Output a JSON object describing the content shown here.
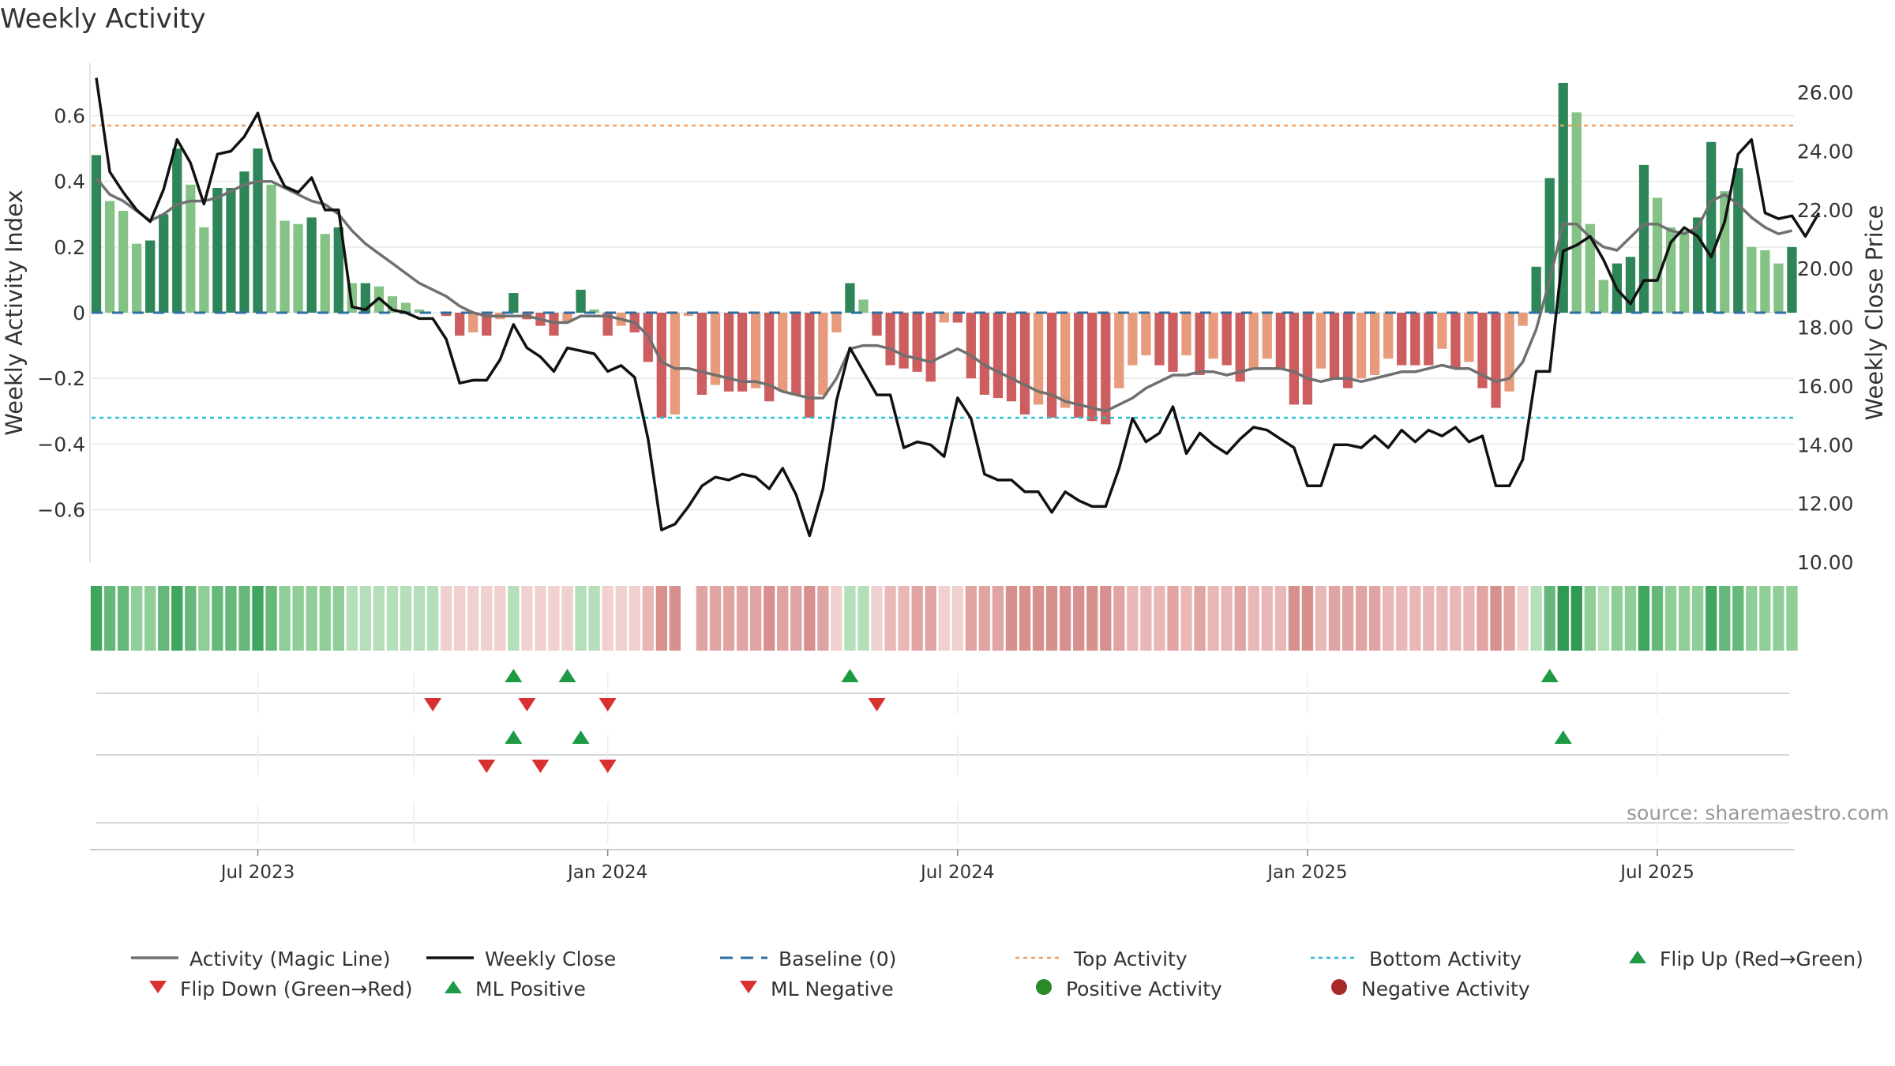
{
  "chart_data": {
    "type": "bar",
    "title": "Weekly Activity",
    "ylabel": "Weekly Activity Index",
    "y2label": "Weekly Close Price",
    "ylim": [
      -0.76,
      0.76
    ],
    "y2lim": [
      10,
      27
    ],
    "yticks": [
      {
        "value": 0.6,
        "label": "0.6"
      },
      {
        "value": 0.4,
        "label": "0.4"
      },
      {
        "value": 0.2,
        "label": "0.2"
      },
      {
        "value": 0,
        "label": "0"
      },
      {
        "value": -0.2,
        "label": "−0.2"
      },
      {
        "value": -0.4,
        "label": "−0.4"
      },
      {
        "value": -0.6,
        "label": "−0.6"
      }
    ],
    "y2ticks": [
      {
        "value": 26,
        "label": "26.00"
      },
      {
        "value": 24,
        "label": "24.00"
      },
      {
        "value": 22,
        "label": "22.00"
      },
      {
        "value": 20,
        "label": "20.00"
      },
      {
        "value": 18,
        "label": "18.00"
      },
      {
        "value": 16,
        "label": "16.00"
      },
      {
        "value": 14,
        "label": "14.00"
      },
      {
        "value": 12,
        "label": "12.00"
      },
      {
        "value": 10,
        "label": "10.00"
      }
    ],
    "xticks": [
      {
        "week": 12,
        "label": "Jul 2023"
      },
      {
        "week": 38,
        "label": "Jan 2024"
      },
      {
        "week": 64,
        "label": "Jul 2024"
      },
      {
        "week": 90,
        "label": "Jan 2025"
      },
      {
        "week": 116,
        "label": "Jul 2025"
      }
    ],
    "top_activity": 0.57,
    "bottom_activity": -0.32,
    "activity": [
      0.48,
      0.34,
      0.31,
      0.21,
      0.22,
      0.3,
      0.5,
      0.39,
      0.26,
      0.38,
      0.38,
      0.43,
      0.5,
      0.39,
      0.28,
      0.27,
      0.29,
      0.24,
      0.26,
      0.09,
      0.09,
      0.08,
      0.05,
      0.03,
      0.01,
      0.0,
      -0.01,
      -0.07,
      -0.06,
      -0.07,
      -0.02,
      0.06,
      -0.02,
      -0.04,
      -0.07,
      -0.03,
      0.07,
      0.01,
      -0.07,
      -0.04,
      -0.06,
      -0.15,
      -0.32,
      -0.31,
      -0.01,
      -0.25,
      -0.22,
      -0.24,
      -0.24,
      -0.23,
      -0.27,
      -0.24,
      -0.25,
      -0.32,
      -0.25,
      -0.06,
      0.09,
      0.04,
      -0.07,
      -0.16,
      -0.17,
      -0.18,
      -0.21,
      -0.03,
      -0.03,
      -0.2,
      -0.25,
      -0.26,
      -0.27,
      -0.31,
      -0.28,
      -0.32,
      -0.29,
      -0.32,
      -0.33,
      -0.34,
      -0.23,
      -0.16,
      -0.13,
      -0.16,
      -0.18,
      -0.13,
      -0.19,
      -0.14,
      -0.16,
      -0.21,
      -0.17,
      -0.14,
      -0.17,
      -0.28,
      -0.28,
      -0.17,
      -0.2,
      -0.23,
      -0.2,
      -0.19,
      -0.14,
      -0.16,
      -0.16,
      -0.16,
      -0.11,
      -0.17,
      -0.15,
      -0.23,
      -0.29,
      -0.24,
      -0.04,
      0.14,
      0.41,
      0.7,
      0.61,
      0.27,
      0.1,
      0.15,
      0.17,
      0.45,
      0.35,
      0.26,
      0.25,
      0.29,
      0.52,
      0.37,
      0.44,
      0.2,
      0.19,
      0.15,
      0.2
    ],
    "magic_line": [
      0.41,
      0.36,
      0.34,
      0.31,
      0.28,
      0.3,
      0.33,
      0.34,
      0.34,
      0.35,
      0.37,
      0.39,
      0.4,
      0.4,
      0.38,
      0.36,
      0.34,
      0.33,
      0.3,
      0.25,
      0.21,
      0.18,
      0.15,
      0.12,
      0.09,
      0.07,
      0.05,
      0.02,
      0.0,
      -0.01,
      -0.01,
      -0.01,
      -0.01,
      -0.02,
      -0.03,
      -0.03,
      -0.01,
      -0.01,
      -0.01,
      -0.02,
      -0.03,
      -0.07,
      -0.15,
      -0.17,
      -0.17,
      -0.18,
      -0.19,
      -0.2,
      -0.21,
      -0.21,
      -0.22,
      -0.24,
      -0.25,
      -0.26,
      -0.26,
      -0.2,
      -0.11,
      -0.1,
      -0.1,
      -0.11,
      -0.13,
      -0.14,
      -0.15,
      -0.13,
      -0.11,
      -0.13,
      -0.16,
      -0.18,
      -0.2,
      -0.22,
      -0.24,
      -0.25,
      -0.27,
      -0.28,
      -0.29,
      -0.3,
      -0.28,
      -0.26,
      -0.23,
      -0.21,
      -0.19,
      -0.19,
      -0.18,
      -0.18,
      -0.19,
      -0.18,
      -0.17,
      -0.17,
      -0.17,
      -0.18,
      -0.2,
      -0.21,
      -0.2,
      -0.2,
      -0.21,
      -0.2,
      -0.19,
      -0.18,
      -0.18,
      -0.17,
      -0.16,
      -0.17,
      -0.17,
      -0.19,
      -0.21,
      -0.2,
      -0.15,
      -0.05,
      0.1,
      0.27,
      0.27,
      0.23,
      0.2,
      0.19,
      0.23,
      0.27,
      0.27,
      0.25,
      0.24,
      0.26,
      0.34,
      0.36,
      0.33,
      0.29,
      0.26,
      0.24,
      0.25
    ],
    "weekly_close": [
      26.5,
      23.3,
      22.6,
      22.0,
      21.6,
      22.7,
      24.4,
      23.6,
      22.2,
      23.9,
      24.0,
      24.5,
      25.3,
      23.7,
      22.8,
      22.6,
      23.1,
      22.0,
      22.0,
      18.7,
      18.6,
      19.0,
      18.6,
      18.5,
      18.3,
      18.3,
      17.6,
      16.1,
      16.2,
      16.2,
      16.9,
      18.1,
      17.3,
      17.0,
      16.5,
      17.3,
      17.2,
      17.1,
      16.5,
      16.7,
      16.3,
      14.2,
      11.1,
      11.3,
      11.9,
      12.6,
      12.9,
      12.8,
      13.0,
      12.9,
      12.5,
      13.2,
      12.3,
      10.9,
      12.5,
      15.5,
      17.3,
      16.5,
      15.7,
      15.7,
      13.9,
      14.1,
      14.0,
      13.6,
      15.6,
      14.9,
      13.0,
      12.8,
      12.8,
      12.4,
      12.4,
      11.7,
      12.4,
      12.1,
      11.9,
      11.9,
      13.2,
      14.9,
      14.1,
      14.4,
      15.3,
      13.7,
      14.4,
      14.0,
      13.7,
      14.2,
      14.6,
      14.5,
      14.2,
      13.9,
      12.6,
      12.6,
      14.0,
      14.0,
      13.9,
      14.3,
      13.9,
      14.5,
      14.1,
      14.5,
      14.3,
      14.6,
      14.1,
      14.3,
      12.6,
      12.6,
      13.5,
      16.5,
      16.5,
      20.6,
      20.8,
      21.1,
      20.3,
      19.3,
      18.8,
      19.6,
      19.6,
      20.9,
      21.4,
      21.1,
      20.4,
      21.6,
      23.9,
      24.4,
      21.9,
      21.7,
      21.8,
      21.1,
      21.9
    ],
    "flip_up": [
      31,
      35,
      56,
      108
    ],
    "flip_down": [
      25,
      32,
      38,
      58
    ],
    "ml_positive": [
      31,
      36,
      109
    ],
    "ml_negative": [
      29,
      33,
      38
    ]
  },
  "source": "source: sharemaestro.com",
  "legend": [
    {
      "label": "Activity (Magic Line)",
      "symbol": "solid-line",
      "color": "#707070"
    },
    {
      "label": "Weekly Close",
      "symbol": "solid-line",
      "color": "#111111"
    },
    {
      "label": "Baseline (0)",
      "symbol": "dash-line",
      "color": "#2d6fa3"
    },
    {
      "label": "Top Activity",
      "symbol": "dot-line",
      "color": "#f0a060"
    },
    {
      "label": "Bottom Activity",
      "symbol": "dot-line",
      "color": "#2bbdd6"
    },
    {
      "label": "Flip Up (Red→Green)",
      "symbol": "triangle-up",
      "color": "#1e9a45"
    },
    {
      "label": "Flip Down (Green→Red)",
      "symbol": "triangle-down",
      "color": "#d93030"
    },
    {
      "label": "ML Positive",
      "symbol": "triangle-up",
      "color": "#1e9a45"
    },
    {
      "label": "ML Negative",
      "symbol": "triangle-down",
      "color": "#d93030"
    },
    {
      "label": "Positive Activity",
      "symbol": "circle",
      "color": "#2a8a2a"
    },
    {
      "label": "Negative Activity",
      "symbol": "circle",
      "color": "#a82828"
    }
  ],
  "colors": {
    "pos_dark": "#2e8558",
    "pos_light": "#85c285",
    "neg_dark": "#cd5e60",
    "neg_light": "#e89b7c",
    "grid": "#e8e8e8"
  }
}
